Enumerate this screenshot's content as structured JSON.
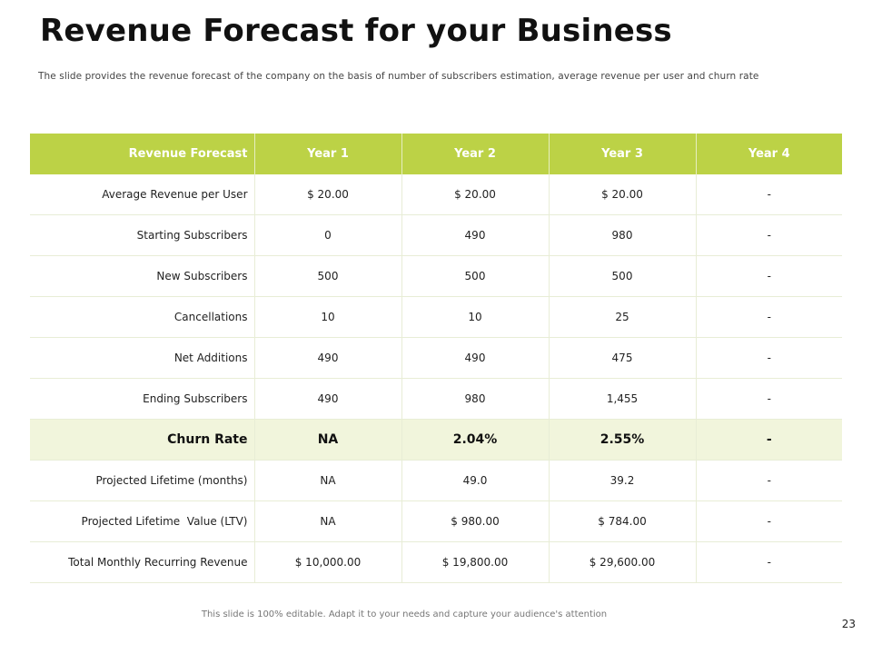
{
  "slide": {
    "title": "Revenue Forecast for your Business",
    "subtitle": "The slide provides the revenue forecast of the company on the basis of number of subscribers estimation, average revenue per user and churn rate",
    "footer_note": "This slide is 100% editable. Adapt it to your needs and capture your audience's attention",
    "page_number": "23"
  },
  "colors": {
    "header_bg": "#bcd246",
    "highlight_row_bg": "#f1f5dc"
  },
  "table": {
    "headers": [
      "Revenue Forecast",
      "Year 1",
      "Year 2",
      "Year 3",
      "Year 4"
    ],
    "rows": [
      {
        "label": "Average Revenue per User",
        "values": [
          "$ 20.00",
          "$ 20.00",
          "$ 20.00",
          "-"
        ]
      },
      {
        "label": "Starting Subscribers",
        "values": [
          "0",
          "490",
          "980",
          "-"
        ]
      },
      {
        "label": "New Subscribers",
        "values": [
          "500",
          "500",
          "500",
          "-"
        ]
      },
      {
        "label": "Cancellations",
        "values": [
          "10",
          "10",
          "25",
          "-"
        ]
      },
      {
        "label": "Net Additions",
        "values": [
          "490",
          "490",
          "475",
          "-"
        ]
      },
      {
        "label": "Ending Subscribers",
        "values": [
          "490",
          "980",
          "1,455",
          "-"
        ]
      },
      {
        "label": "Churn Rate",
        "values": [
          "NA",
          "2.04%",
          "2.55%",
          "-"
        ]
      },
      {
        "label": "Projected Lifetime (months)",
        "values": [
          "NA",
          "49.0",
          "39.2",
          "-"
        ]
      },
      {
        "label": "Projected Lifetime  Value (LTV)",
        "values": [
          "NA",
          "$ 980.00",
          "$ 784.00",
          "-"
        ]
      },
      {
        "label": "Total Monthly Recurring Revenue",
        "values": [
          "$ 10,000.00",
          "$ 19,800.00",
          "$ 29,600.00",
          "-"
        ]
      }
    ]
  }
}
